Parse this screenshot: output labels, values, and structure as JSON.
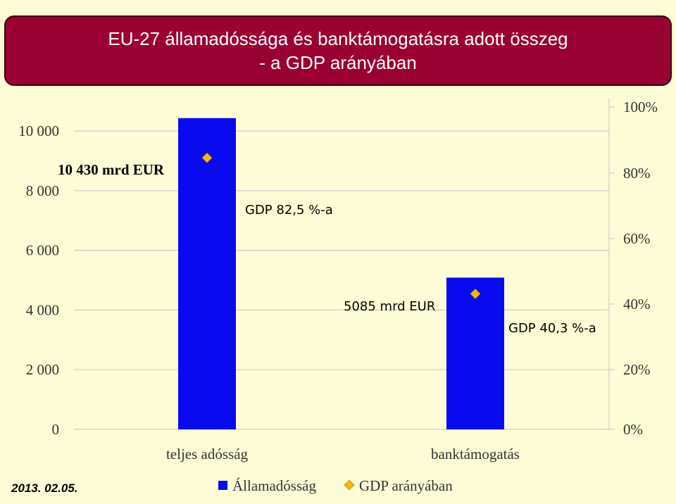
{
  "header": {
    "title_line1": "EU-27 államadóssága és banktámogatásra adott összeg",
    "title_line2": "- a GDP arányában"
  },
  "footer": {
    "date": "2013. 02.05."
  },
  "colors": {
    "title_bg": "#9b0033",
    "background": "#fdfcd6",
    "bar": "#0a0aee",
    "marker": "#f5b800",
    "gridline": "#cccccc"
  },
  "chart_data": {
    "type": "bar",
    "categories": [
      "teljes adósság",
      "banktámogatás"
    ],
    "series": [
      {
        "name": "Államadósság",
        "kind": "bar",
        "axis": "left",
        "values": [
          10430,
          5085
        ]
      },
      {
        "name": "GDP arányában",
        "kind": "scatter",
        "axis": "right",
        "values": [
          82.5,
          40.3
        ]
      }
    ],
    "y_left": {
      "min": 0,
      "max": 10000,
      "ticks": [
        0,
        2000,
        4000,
        6000,
        8000,
        10000
      ],
      "tick_labels": [
        "0",
        "2 000",
        "4 000",
        "6 000",
        "8 000",
        "10 000"
      ]
    },
    "y_right": {
      "min": 0,
      "max": 100,
      "ticks": [
        0,
        20,
        40,
        60,
        80,
        100
      ],
      "tick_labels": [
        "0%",
        "20%",
        "40%",
        "60%",
        "80%",
        "100%"
      ]
    },
    "annotations": [
      "10 430 mrd EUR",
      "GDP 82,5 %-a",
      "5085 mrd EUR",
      "GDP 40,3 %-a"
    ],
    "grid": true,
    "legend": "bottom"
  }
}
